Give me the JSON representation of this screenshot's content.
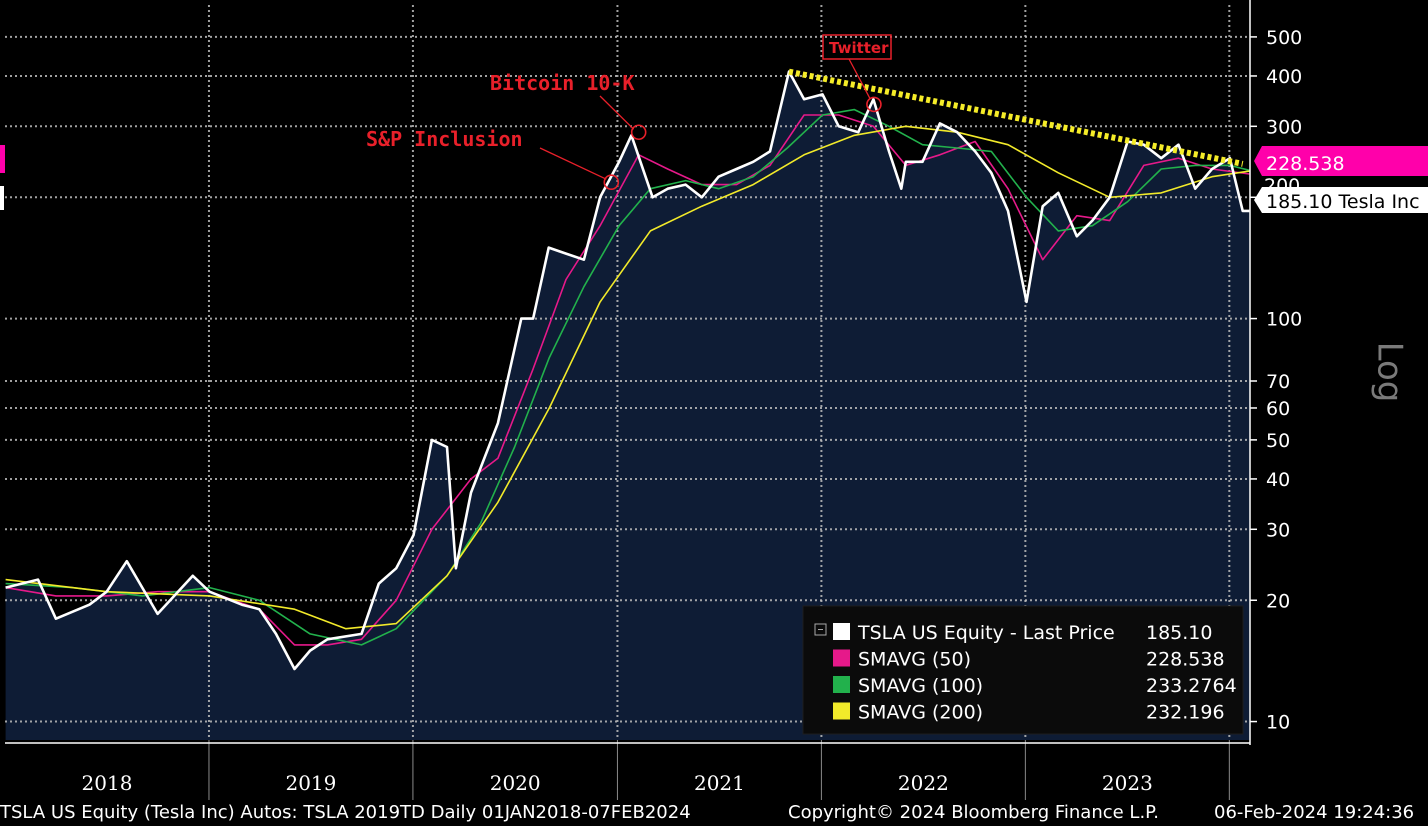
{
  "footer": {
    "left": "TSLA US Equity (Tesla Inc) Autos: TSLA 2019TD  Daily 01JAN2018-07FEB2024",
    "copyright": "Copyright© 2024 Bloomberg Finance L.P.",
    "timestamp": "06-Feb-2024 19:24:36"
  },
  "tags": {
    "sma50": {
      "text": "228.538",
      "color": "#ff00aa"
    },
    "last": {
      "text": "185.10 Tesla Inc"
    },
    "hidden_partial": "200"
  },
  "log_label": "Log",
  "colors": {
    "background": "#000000",
    "area": "#0e1c35",
    "price": "#ffffff",
    "sma50": "#e6198a",
    "sma100": "#22b14c",
    "sma200": "#f2ea2a",
    "trendline": "#f5ec28",
    "annotation": "#e8202a"
  },
  "chart_data": {
    "type": "line",
    "yscale": "log",
    "ylim": [
      9,
      600
    ],
    "xlim": [
      "2018-01-01",
      "2024-02-07"
    ],
    "yticks": [
      10,
      20,
      30,
      40,
      50,
      60,
      70,
      100,
      200,
      300,
      400,
      500
    ],
    "x_categories": [
      "2018",
      "2019",
      "2020",
      "2021",
      "2022",
      "2023"
    ],
    "grid": true,
    "legend_position": "bottom-right",
    "annotations": [
      {
        "text": "Bitcoin 10-K",
        "x": "2021-02-08",
        "y": 290
      },
      {
        "text": "S&P Inclusion",
        "x": "2020-12-21",
        "y": 218
      },
      {
        "text": "Twitter",
        "x": "2022-04-05",
        "y": 340
      }
    ],
    "trendline": {
      "from": {
        "x": "2021-11-04",
        "y": 410
      },
      "to": {
        "x": "2024-01-25",
        "y": 242
      }
    },
    "series": [
      {
        "name": "TSLA US Equity - Last Price",
        "last_value": "185.10",
        "x": [
          "2018-01-02",
          "2018-03-01",
          "2018-04-02",
          "2018-06-01",
          "2018-07-02",
          "2018-08-07",
          "2018-10-01",
          "2018-12-03",
          "2019-01-02",
          "2019-03-01",
          "2019-04-01",
          "2019-05-01",
          "2019-06-03",
          "2019-07-01",
          "2019-08-01",
          "2019-10-01",
          "2019-11-01",
          "2019-12-02",
          "2020-01-02",
          "2020-02-04",
          "2020-03-02",
          "2020-03-18",
          "2020-04-14",
          "2020-06-01",
          "2020-07-13",
          "2020-08-03",
          "2020-08-31",
          "2020-10-01",
          "2020-11-02",
          "2020-12-01",
          "2021-01-04",
          "2021-01-26",
          "2021-03-05",
          "2021-04-01",
          "2021-05-03",
          "2021-06-01",
          "2021-07-01",
          "2021-08-02",
          "2021-09-01",
          "2021-10-01",
          "2021-11-04",
          "2021-12-01",
          "2022-01-03",
          "2022-02-01",
          "2022-03-08",
          "2022-04-04",
          "2022-05-02",
          "2022-05-24",
          "2022-06-01",
          "2022-07-01",
          "2022-08-01",
          "2022-09-01",
          "2022-10-03",
          "2022-11-01",
          "2022-12-01",
          "2023-01-03",
          "2023-02-01",
          "2023-03-01",
          "2023-04-03",
          "2023-05-01",
          "2023-06-01",
          "2023-07-03",
          "2023-08-01",
          "2023-09-01",
          "2023-10-02",
          "2023-11-01",
          "2023-12-01",
          "2024-01-02",
          "2024-01-25",
          "2024-02-06"
        ],
        "y": [
          21.5,
          22.5,
          18,
          19.5,
          21,
          25,
          18.5,
          23,
          21,
          19.5,
          19,
          16.5,
          13.5,
          15,
          16,
          16.5,
          22,
          24,
          29,
          50,
          48,
          24,
          37,
          55,
          100,
          100,
          150,
          145,
          140,
          200,
          245,
          285,
          200,
          210,
          215,
          200,
          225,
          235,
          245,
          260,
          410,
          350,
          360,
          300,
          290,
          350,
          260,
          210,
          245,
          245,
          305,
          290,
          260,
          230,
          185,
          110,
          190,
          205,
          160,
          175,
          200,
          275,
          270,
          250,
          270,
          210,
          235,
          250,
          185,
          185
        ]
      },
      {
        "name": "SMAVG (50)",
        "last_value": "228.538",
        "x": [
          "2018-01-02",
          "2018-04-02",
          "2018-07-02",
          "2018-10-01",
          "2019-01-02",
          "2019-04-01",
          "2019-06-03",
          "2019-08-01",
          "2019-10-01",
          "2019-12-02",
          "2020-02-04",
          "2020-04-14",
          "2020-06-01",
          "2020-08-03",
          "2020-10-01",
          "2020-12-01",
          "2021-02-08",
          "2021-04-01",
          "2021-06-01",
          "2021-08-02",
          "2021-10-01",
          "2021-12-01",
          "2022-02-01",
          "2022-04-04",
          "2022-06-01",
          "2022-08-01",
          "2022-10-03",
          "2022-12-01",
          "2023-02-01",
          "2023-04-03",
          "2023-06-01",
          "2023-08-01",
          "2023-10-02",
          "2023-12-01",
          "2024-02-06"
        ],
        "y": [
          21.5,
          20.5,
          20.5,
          21,
          21,
          19,
          15.5,
          15.5,
          16,
          20,
          30,
          40,
          45,
          75,
          125,
          170,
          255,
          235,
          215,
          215,
          240,
          320,
          320,
          300,
          240,
          255,
          275,
          210,
          140,
          180,
          175,
          240,
          250,
          235,
          228.5
        ]
      },
      {
        "name": "SMAVG (100)",
        "last_value": "233.2764",
        "x": [
          "2018-01-02",
          "2018-05-01",
          "2018-09-04",
          "2019-01-02",
          "2019-04-01",
          "2019-07-01",
          "2019-10-01",
          "2019-12-02",
          "2020-03-02",
          "2020-05-01",
          "2020-07-01",
          "2020-09-01",
          "2020-11-02",
          "2021-01-04",
          "2021-03-01",
          "2021-05-03",
          "2021-07-01",
          "2021-09-01",
          "2021-11-01",
          "2022-01-03",
          "2022-03-01",
          "2022-05-02",
          "2022-07-01",
          "2022-09-01",
          "2022-11-01",
          "2023-01-03",
          "2023-03-01",
          "2023-05-01",
          "2023-07-03",
          "2023-09-01",
          "2023-11-01",
          "2024-01-02",
          "2024-02-06"
        ],
        "y": [
          22,
          21.5,
          20.5,
          21.5,
          20,
          16.5,
          15.5,
          17,
          23,
          31,
          48,
          80,
          120,
          170,
          210,
          220,
          210,
          225,
          265,
          320,
          330,
          300,
          270,
          265,
          260,
          200,
          165,
          170,
          195,
          235,
          240,
          240,
          233.3
        ]
      },
      {
        "name": "SMAVG (200)",
        "last_value": "232.196",
        "x": [
          "2018-01-02",
          "2018-07-02",
          "2019-01-02",
          "2019-06-03",
          "2019-09-03",
          "2019-12-02",
          "2020-03-02",
          "2020-06-01",
          "2020-09-01",
          "2020-12-01",
          "2021-03-01",
          "2021-06-01",
          "2021-09-01",
          "2021-12-01",
          "2022-03-01",
          "2022-06-01",
          "2022-09-01",
          "2022-12-01",
          "2023-03-01",
          "2023-06-01",
          "2023-09-01",
          "2023-12-01",
          "2024-02-06"
        ],
        "y": [
          22.5,
          21,
          20.5,
          19,
          17,
          17.5,
          23,
          35,
          60,
          110,
          165,
          190,
          215,
          255,
          285,
          300,
          290,
          270,
          230,
          200,
          205,
          225,
          232.2
        ]
      }
    ]
  }
}
